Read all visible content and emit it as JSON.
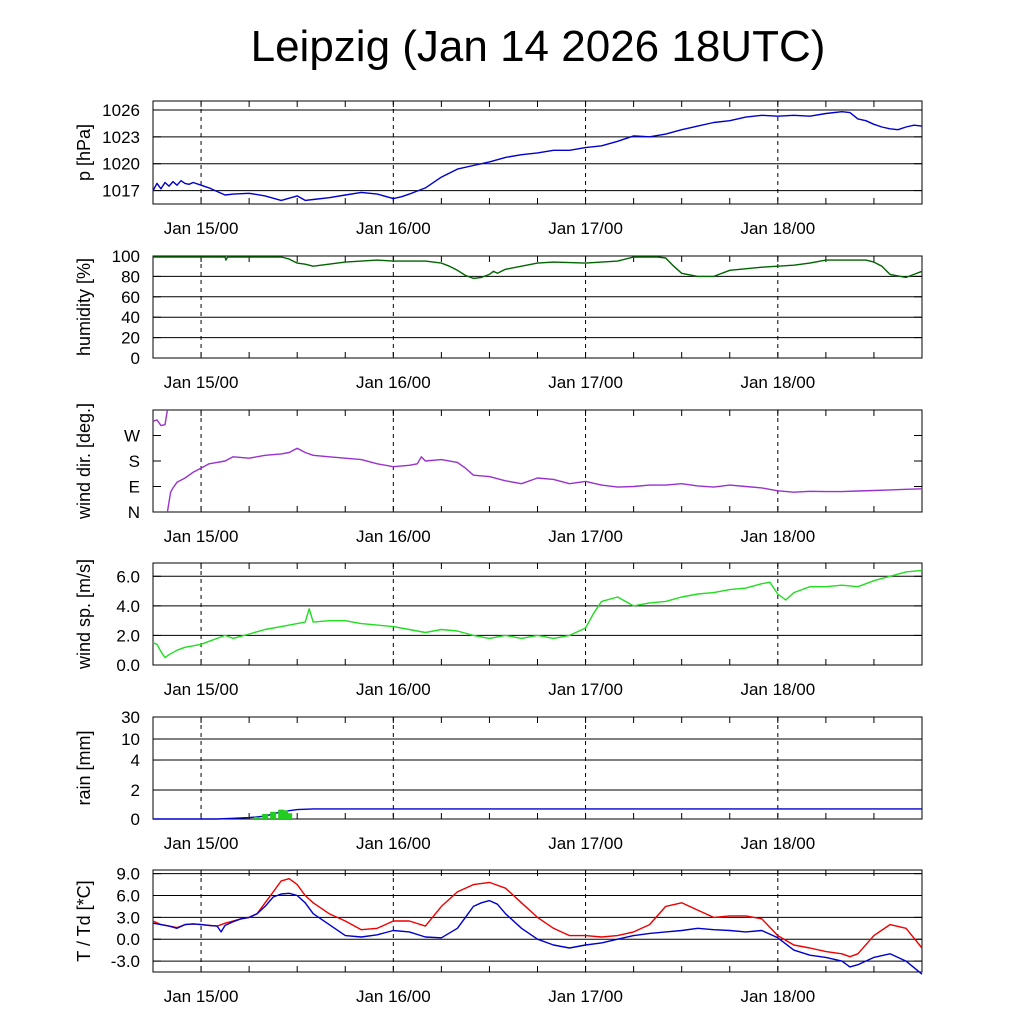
{
  "title": "Leipzig (Jan 14 2026 18UTC)",
  "colors": {
    "pressure": "#0000cc",
    "humidity": "#006400",
    "wind_dir": "#9932cc",
    "wind_speed": "#22dd22",
    "rain_total": "#0000cc",
    "rain_bars": "#22cc22",
    "temperature": "#ee0000",
    "dewpoint": "#0000cc"
  },
  "chart_data": [
    {
      "type": "line",
      "id": "pressure",
      "ylabel": "p [hPa]",
      "x_unit": "hours since Jan 14 18UTC",
      "xlim": [
        0,
        96
      ],
      "ylim": [
        1015.5,
        1027.0
      ],
      "yticks": [
        1017,
        1020,
        1023,
        1026
      ],
      "ytick_labels": [
        "1017",
        "1020",
        "1023",
        "1026"
      ],
      "x_ticks": [
        6,
        30,
        54,
        78
      ],
      "x_tick_labels": [
        "Jan 15/00",
        "Jan 16/00",
        "Jan 17/00",
        "Jan 18/00"
      ],
      "grid": true,
      "series": [
        {
          "name": "pressure",
          "x": [
            0,
            0.5,
            1,
            1.5,
            2,
            2.5,
            3,
            3.5,
            4,
            4.5,
            5,
            6,
            7,
            8,
            9,
            10,
            12,
            14,
            16,
            18,
            19,
            20,
            22,
            24,
            26,
            28,
            30,
            31,
            32,
            34,
            36,
            38,
            40,
            42,
            44,
            46,
            48,
            50,
            52,
            54,
            56,
            58,
            60,
            62,
            64,
            66,
            68,
            70,
            72,
            74,
            76,
            78,
            80,
            82,
            84,
            86,
            87,
            88,
            89,
            90,
            91,
            92,
            93,
            94,
            95,
            96
          ],
          "values": [
            1017.0,
            1017.8,
            1017.2,
            1017.9,
            1017.5,
            1018.0,
            1017.6,
            1018.1,
            1017.8,
            1017.7,
            1017.9,
            1017.6,
            1017.3,
            1016.9,
            1016.5,
            1016.6,
            1016.7,
            1016.4,
            1015.9,
            1016.4,
            1015.9,
            1016.0,
            1016.2,
            1016.5,
            1016.8,
            1016.6,
            1016.1,
            1016.3,
            1016.6,
            1017.3,
            1018.5,
            1019.4,
            1019.8,
            1020.2,
            1020.7,
            1021.0,
            1021.2,
            1021.5,
            1021.5,
            1021.8,
            1022.0,
            1022.5,
            1023.1,
            1023.0,
            1023.3,
            1023.8,
            1024.2,
            1024.6,
            1024.8,
            1025.2,
            1025.4,
            1025.3,
            1025.4,
            1025.3,
            1025.6,
            1025.8,
            1025.7,
            1025.0,
            1024.8,
            1024.4,
            1024.1,
            1023.9,
            1023.8,
            1024.1,
            1024.3,
            1024.2
          ]
        }
      ]
    },
    {
      "type": "line",
      "id": "humidity",
      "ylabel": "humidity [%]",
      "xlim": [
        0,
        96
      ],
      "ylim": [
        0,
        100
      ],
      "yticks": [
        0,
        20,
        40,
        60,
        80,
        100
      ],
      "ytick_labels": [
        "0",
        "20",
        "40",
        "60",
        "80",
        "100"
      ],
      "x_ticks": [
        6,
        30,
        54,
        78
      ],
      "x_tick_labels": [
        "Jan 15/00",
        "Jan 16/00",
        "Jan 17/00",
        "Jan 18/00"
      ],
      "grid": true,
      "series": [
        {
          "name": "humidity",
          "x": [
            0,
            4,
            8,
            9,
            9.1,
            9.3,
            10,
            14,
            16,
            16.5,
            17,
            18,
            19,
            20,
            24,
            28,
            30,
            34,
            36,
            37,
            38,
            39,
            40,
            41,
            42,
            42.5,
            43,
            44,
            48,
            50,
            54,
            56,
            58,
            60,
            62,
            63,
            64,
            65,
            66,
            68,
            70,
            72,
            76,
            78,
            80,
            82,
            84,
            86,
            87,
            88,
            89,
            90,
            91,
            92,
            94,
            95,
            96
          ],
          "values": [
            99,
            99,
            99,
            99,
            96,
            99,
            99,
            99,
            99,
            98,
            97,
            93,
            92,
            90,
            94,
            96,
            95,
            95,
            93,
            90,
            86,
            81,
            78,
            79,
            82,
            85,
            83,
            87,
            93,
            94,
            93,
            94,
            95,
            99,
            99,
            99,
            98,
            90,
            83,
            80,
            80,
            86,
            89,
            90,
            91,
            93,
            96,
            96,
            96,
            96,
            96,
            94,
            90,
            82,
            79,
            82,
            85
          ]
        }
      ]
    },
    {
      "type": "line",
      "id": "wind_direction",
      "ylabel": "wind dir. [deg.]",
      "xlim": [
        0,
        96
      ],
      "ylim": [
        0,
        360
      ],
      "yticks": [
        0,
        90,
        180,
        270
      ],
      "ytick_labels": [
        "N",
        "E",
        "S",
        "W"
      ],
      "x_ticks": [
        6,
        30,
        54,
        78
      ],
      "x_tick_labels": [
        "Jan 15/00",
        "Jan 16/00",
        "Jan 17/00",
        "Jan 18/00"
      ],
      "grid": false,
      "series": [
        {
          "name": "wind_dir_a",
          "x": [
            0,
            0.5,
            1,
            1.5,
            1.8
          ],
          "values": [
            320,
            325,
            305,
            308,
            360
          ]
        },
        {
          "name": "wind_dir_b",
          "x": [
            1.8,
            2.2,
            2.5,
            3,
            4,
            5,
            6,
            7,
            8,
            9,
            10,
            12,
            14,
            16,
            17,
            18,
            19,
            20,
            22,
            24,
            26,
            28,
            30,
            32,
            33,
            33.5,
            34,
            36,
            38,
            39,
            40,
            42,
            44,
            46,
            48,
            50,
            52,
            54,
            56,
            58,
            60,
            62,
            64,
            66,
            68,
            70,
            72,
            74,
            76,
            78,
            80,
            82,
            84,
            86,
            88,
            90,
            92,
            94,
            96
          ],
          "values": [
            0,
            70,
            85,
            105,
            120,
            140,
            155,
            170,
            175,
            180,
            195,
            190,
            200,
            205,
            210,
            225,
            210,
            200,
            195,
            190,
            185,
            170,
            160,
            165,
            170,
            195,
            180,
            185,
            175,
            155,
            130,
            125,
            110,
            100,
            120,
            115,
            100,
            108,
            95,
            88,
            90,
            95,
            95,
            100,
            92,
            88,
            95,
            90,
            85,
            75,
            70,
            73,
            72,
            72,
            74,
            76,
            78,
            80,
            82
          ]
        }
      ]
    },
    {
      "type": "line",
      "id": "wind_speed",
      "ylabel": "wind sp. [m/s]",
      "xlim": [
        0,
        96
      ],
      "ylim": [
        0,
        6.9
      ],
      "yticks": [
        0,
        2,
        4,
        6
      ],
      "ytick_labels": [
        "0.0",
        "2.0",
        "4.0",
        "6.0"
      ],
      "x_ticks": [
        6,
        30,
        54,
        78
      ],
      "x_tick_labels": [
        "Jan 15/00",
        "Jan 16/00",
        "Jan 17/00",
        "Jan 18/00"
      ],
      "grid": true,
      "series": [
        {
          "name": "wind_speed",
          "x": [
            0,
            0.5,
            1,
            1.5,
            2,
            3,
            4,
            5,
            6,
            7,
            8,
            9,
            10,
            12,
            14,
            16,
            18,
            19,
            19.5,
            20,
            22,
            24,
            26,
            28,
            30,
            32,
            34,
            36,
            38,
            40,
            42,
            44,
            46,
            48,
            50,
            52,
            54,
            55,
            56,
            58,
            60,
            62,
            64,
            66,
            68,
            70,
            72,
            74,
            76,
            77,
            78,
            79,
            80,
            82,
            84,
            86,
            88,
            90,
            92,
            94,
            96
          ],
          "values": [
            1.5,
            1.4,
            0.9,
            0.5,
            0.7,
            1.0,
            1.2,
            1.3,
            1.4,
            1.6,
            1.8,
            2.0,
            1.8,
            2.1,
            2.4,
            2.6,
            2.8,
            2.9,
            3.8,
            2.9,
            3.0,
            3.0,
            2.8,
            2.7,
            2.6,
            2.4,
            2.2,
            2.4,
            2.3,
            2.0,
            1.8,
            2.0,
            1.8,
            2.0,
            1.8,
            2.0,
            2.5,
            3.5,
            4.3,
            4.6,
            4.0,
            4.2,
            4.3,
            4.6,
            4.8,
            4.9,
            5.1,
            5.2,
            5.5,
            5.6,
            4.8,
            4.4,
            4.9,
            5.3,
            5.3,
            5.4,
            5.3,
            5.7,
            6.0,
            6.3,
            6.4
          ]
        }
      ]
    },
    {
      "type": "area",
      "id": "rain",
      "ylabel": "rain [mm]",
      "xlim": [
        0,
        96
      ],
      "ylim": [
        0,
        30
      ],
      "yticks": [
        0,
        2,
        4,
        10,
        30
      ],
      "ytick_labels": [
        "0",
        "2",
        "4",
        "10",
        "30"
      ],
      "x_ticks": [
        6,
        30,
        54,
        78
      ],
      "x_tick_labels": [
        "Jan 15/00",
        "Jan 16/00",
        "Jan 17/00",
        "Jan 18/00"
      ],
      "grid": true,
      "series": [
        {
          "name": "rain_total",
          "x": [
            0,
            8,
            10,
            12,
            14,
            16,
            18,
            20,
            96
          ],
          "values": [
            0,
            0,
            0.05,
            0.1,
            0.2,
            0.5,
            0.65,
            0.7,
            0.7
          ]
        },
        {
          "name": "rain_bars",
          "x": [
            13,
            14,
            15,
            16,
            16.5,
            17
          ],
          "values": [
            0.15,
            0.35,
            0.5,
            0.65,
            0.6,
            0.4
          ]
        }
      ]
    },
    {
      "type": "line",
      "id": "temperature",
      "ylabel": "T / Td [*C]",
      "xlim": [
        0,
        96
      ],
      "ylim": [
        -4.5,
        9.5
      ],
      "yticks": [
        -3,
        0,
        3,
        6,
        9
      ],
      "ytick_labels": [
        "-3.0",
        "0.0",
        "3.0",
        "6.0",
        "9.0"
      ],
      "x_ticks": [
        6,
        30,
        54,
        78
      ],
      "x_tick_labels": [
        "Jan 15/00",
        "Jan 16/00",
        "Jan 17/00",
        "Jan 18/00"
      ],
      "grid": true,
      "series": [
        {
          "name": "T",
          "x": [
            0,
            1,
            2,
            3,
            4,
            5,
            6,
            7,
            8,
            9,
            10,
            11,
            12,
            13,
            14,
            15,
            16,
            17,
            18,
            19,
            20,
            22,
            24,
            26,
            28,
            30,
            32,
            34,
            36,
            38,
            40,
            42,
            44,
            46,
            48,
            50,
            52,
            54,
            56,
            58,
            60,
            62,
            64,
            66,
            68,
            70,
            72,
            74,
            76,
            78,
            80,
            82,
            84,
            86,
            87,
            88,
            90,
            92,
            94,
            96
          ],
          "values": [
            2.5,
            2.0,
            1.8,
            1.6,
            2.0,
            2.1,
            2.0,
            1.9,
            1.8,
            2.2,
            2.5,
            2.8,
            3.0,
            3.5,
            5.0,
            6.5,
            8.0,
            8.3,
            7.5,
            6.0,
            5.0,
            3.5,
            2.5,
            1.3,
            1.5,
            2.5,
            2.5,
            1.8,
            4.5,
            6.5,
            7.5,
            7.8,
            7.0,
            5.0,
            3.0,
            1.5,
            0.5,
            0.5,
            0.3,
            0.5,
            1.0,
            2.0,
            4.5,
            5.0,
            4.0,
            3.0,
            3.2,
            3.2,
            2.8,
            0.5,
            -0.8,
            -1.2,
            -1.7,
            -2.0,
            -2.4,
            -2.0,
            0.5,
            2.0,
            1.5,
            -1.2
          ]
        },
        {
          "name": "Td",
          "x": [
            0,
            1,
            2,
            3,
            4,
            5,
            6,
            7,
            8,
            8.5,
            9,
            10,
            11,
            12,
            13,
            14,
            15,
            16,
            17,
            18,
            19,
            20,
            22,
            24,
            26,
            28,
            30,
            32,
            34,
            36,
            38,
            39,
            40,
            41,
            42,
            43,
            44,
            46,
            48,
            50,
            52,
            54,
            56,
            58,
            60,
            62,
            64,
            66,
            68,
            70,
            72,
            74,
            76,
            78,
            80,
            82,
            84,
            86,
            87,
            88,
            90,
            92,
            94,
            96
          ],
          "values": [
            2.2,
            2.0,
            1.8,
            1.5,
            2.0,
            2.1,
            2.0,
            1.9,
            1.8,
            1.0,
            1.9,
            2.4,
            2.8,
            3.0,
            3.5,
            4.5,
            5.8,
            6.2,
            6.3,
            6.0,
            5.0,
            3.5,
            2.0,
            0.5,
            0.3,
            0.6,
            1.2,
            1.0,
            0.3,
            0.2,
            1.5,
            3.0,
            4.5,
            5.0,
            5.3,
            4.8,
            3.5,
            1.5,
            0.0,
            -0.8,
            -1.2,
            -0.8,
            -0.5,
            0.0,
            0.5,
            0.8,
            1.0,
            1.2,
            1.5,
            1.3,
            1.2,
            1.0,
            1.2,
            0.2,
            -1.5,
            -2.2,
            -2.5,
            -3.0,
            -3.8,
            -3.5,
            -2.5,
            -2.0,
            -3.0,
            -4.8
          ]
        }
      ]
    }
  ]
}
